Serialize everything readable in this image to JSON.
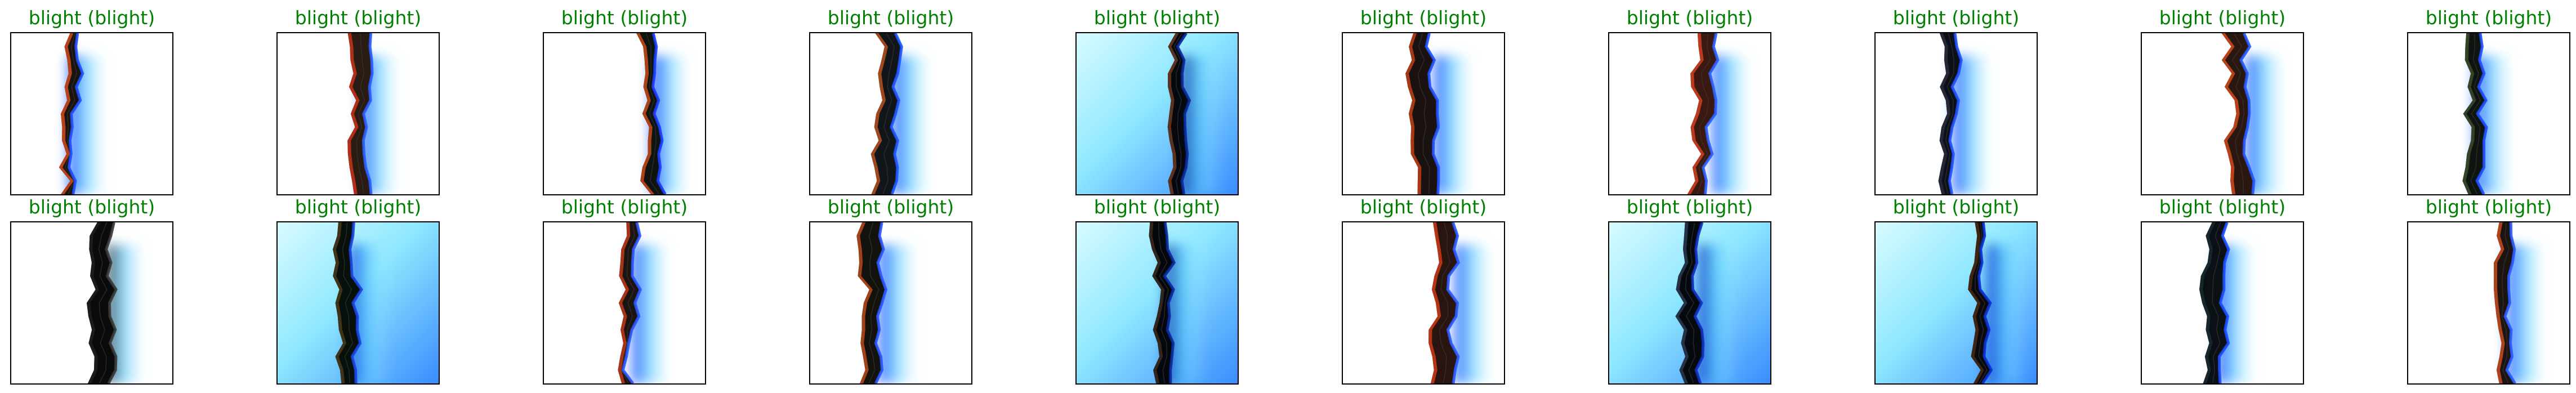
{
  "colors": {
    "title_correct": "#008000",
    "frame": "#000000",
    "background": "#ffffff"
  },
  "grid": {
    "rows": 2,
    "cols": 10
  },
  "panels": [
    {
      "title": "blight (blight)",
      "bg": "white",
      "leaf_color": "#1a1410",
      "tint": "#d44a1c",
      "glow": "#1f4fff"
    },
    {
      "title": "blight (blight)",
      "bg": "white",
      "leaf_color": "#2a1c12",
      "tint": "#c9321a",
      "glow": "#2a5cff"
    },
    {
      "title": "blight (blight)",
      "bg": "white",
      "leaf_color": "#0f1410",
      "tint": "#c94a18",
      "glow": "#1a3cff"
    },
    {
      "title": "blight (blight)",
      "bg": "white",
      "leaf_color": "#10161a",
      "tint": "#b8501e",
      "glow": "#1f55ff"
    },
    {
      "title": "blight (blight)",
      "bg": "cyan",
      "leaf_color": "#05080e",
      "tint": "#6a3a20",
      "glow": "#0a2a9c"
    },
    {
      "title": "blight (blight)",
      "bg": "white",
      "leaf_color": "#1a1210",
      "tint": "#c04018",
      "glow": "#2252ff"
    },
    {
      "title": "blight (blight)",
      "bg": "white",
      "leaf_color": "#3a1a10",
      "tint": "#d24020",
      "glow": "#2a5eff"
    },
    {
      "title": "blight (blight)",
      "bg": "white",
      "leaf_color": "#0c1018",
      "tint": "#2a2a3c",
      "glow": "#1f50ff"
    },
    {
      "title": "blight (blight)",
      "bg": "white",
      "leaf_color": "#2a1810",
      "tint": "#d04a1a",
      "glow": "#2458ff"
    },
    {
      "title": "blight (blight)",
      "bg": "white",
      "leaf_color": "#0e1410",
      "tint": "#3c4a2a",
      "glow": "#1f4dff"
    },
    {
      "title": "blight (blight)",
      "bg": "white",
      "leaf_color": "#0a0c0c",
      "tint": "#202020",
      "glow": "#3a3a3a"
    },
    {
      "title": "blight (blight)",
      "bg": "cyan",
      "leaf_color": "#08100c",
      "tint": "#4a3a1a",
      "glow": "#1a44e0"
    },
    {
      "title": "blight (blight)",
      "bg": "white",
      "leaf_color": "#1c1410",
      "tint": "#c03a18",
      "glow": "#2a55ff"
    },
    {
      "title": "blight (blight)",
      "bg": "white",
      "leaf_color": "#14120c",
      "tint": "#b84a1a",
      "glow": "#2a55ff"
    },
    {
      "title": "blight (blight)",
      "bg": "cyan",
      "leaf_color": "#04070c",
      "tint": "#3a2a20",
      "glow": "#0a2a9c"
    },
    {
      "title": "blight (blight)",
      "bg": "white",
      "leaf_color": "#2a1410",
      "tint": "#d03818",
      "glow": "#2a5aff"
    },
    {
      "title": "blight (blight)",
      "bg": "cyan",
      "leaf_color": "#06090e",
      "tint": "#2a3a50",
      "glow": "#1030c0"
    },
    {
      "title": "blight (blight)",
      "bg": "cyan",
      "leaf_color": "#0a0a0c",
      "tint": "#4a2a18",
      "glow": "#0a30d0"
    },
    {
      "title": "blight (blight)",
      "bg": "white",
      "leaf_color": "#0a1014",
      "tint": "#1a2a30",
      "glow": "#1a4cff"
    },
    {
      "title": "blight (blight)",
      "bg": "white",
      "leaf_color": "#1c1410",
      "tint": "#c84a1c",
      "glow": "#2a5aff"
    }
  ]
}
